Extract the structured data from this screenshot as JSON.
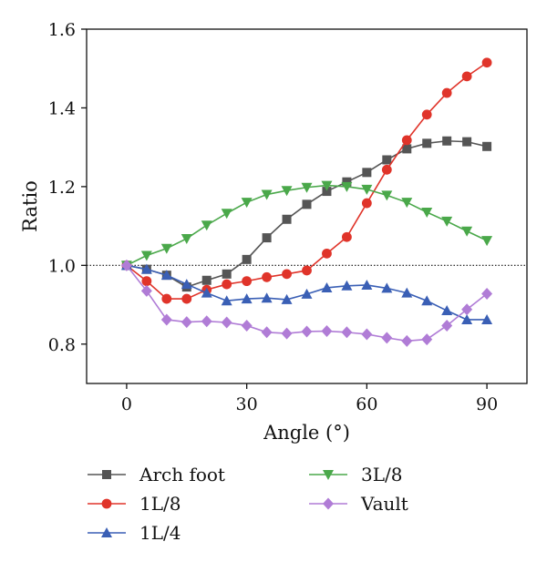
{
  "chart_data": {
    "type": "line",
    "xlabel": "Angle (°)",
    "ylabel": "Ratio",
    "xlim": [
      -10,
      100
    ],
    "ylim": [
      0.7,
      1.6
    ],
    "xticks": [
      0,
      30,
      60,
      90
    ],
    "yticks": [
      0.8,
      1.0,
      1.2,
      1.4,
      1.6
    ],
    "xtick_labels": [
      "0",
      "30",
      "60",
      "90"
    ],
    "ytick_labels": [
      "0.8",
      "1.0",
      "1.2",
      "1.4",
      "1.6"
    ],
    "reference_line": {
      "y": 1.0,
      "style": "dotted"
    },
    "grid": false,
    "legend": "below",
    "x": [
      0,
      5,
      10,
      15,
      20,
      25,
      30,
      35,
      40,
      45,
      50,
      55,
      60,
      65,
      70,
      75,
      80,
      85,
      90
    ],
    "series": [
      {
        "name": "Arch foot",
        "marker": "square",
        "color": "#555555",
        "values": [
          1.0,
          0.99,
          0.975,
          0.945,
          0.962,
          0.978,
          1.015,
          1.07,
          1.117,
          1.155,
          1.188,
          1.212,
          1.236,
          1.268,
          1.296,
          1.31,
          1.316,
          1.314,
          1.302
        ]
      },
      {
        "name": "1L/8",
        "marker": "circle",
        "color": "#e0342a",
        "values": [
          1.0,
          0.96,
          0.915,
          0.915,
          0.938,
          0.952,
          0.96,
          0.97,
          0.978,
          0.987,
          1.03,
          1.072,
          1.158,
          1.243,
          1.318,
          1.383,
          1.438,
          1.48,
          1.515
        ]
      },
      {
        "name": "1L/4",
        "marker": "triangle-up",
        "color": "#3a5fb5",
        "values": [
          1.0,
          0.99,
          0.975,
          0.952,
          0.93,
          0.91,
          0.915,
          0.917,
          0.913,
          0.927,
          0.943,
          0.948,
          0.95,
          0.942,
          0.93,
          0.91,
          0.885,
          0.862,
          0.862
        ]
      },
      {
        "name": "3L/8",
        "marker": "triangle-down",
        "color": "#4aa84a",
        "values": [
          1.0,
          1.025,
          1.043,
          1.068,
          1.102,
          1.132,
          1.16,
          1.18,
          1.19,
          1.198,
          1.203,
          1.2,
          1.193,
          1.178,
          1.16,
          1.135,
          1.112,
          1.087,
          1.063
        ]
      },
      {
        "name": "Vault",
        "marker": "diamond",
        "color": "#b07cd6",
        "values": [
          1.0,
          0.935,
          0.862,
          0.856,
          0.858,
          0.855,
          0.847,
          0.83,
          0.827,
          0.832,
          0.833,
          0.83,
          0.825,
          0.816,
          0.808,
          0.812,
          0.847,
          0.888,
          0.928
        ]
      }
    ]
  }
}
